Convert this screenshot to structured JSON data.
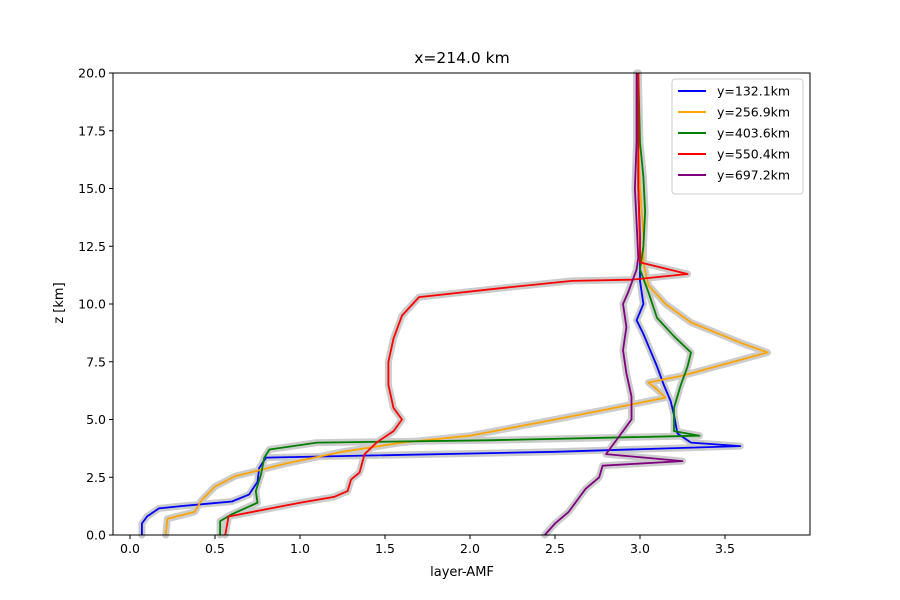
{
  "chart_data": {
    "type": "line",
    "title": "x=214.0 km",
    "xlabel": "layer-AMF",
    "ylabel": "z [km]",
    "xlim": [
      -0.1,
      4.0
    ],
    "ylim": [
      0,
      20
    ],
    "x_ticks": [
      0.0,
      0.5,
      1.0,
      1.5,
      2.0,
      2.5,
      3.0,
      3.5
    ],
    "x_tick_labels": [
      "0.0",
      "0.5",
      "1.0",
      "1.5",
      "2.0",
      "2.5",
      "3.0",
      "3.5"
    ],
    "y_ticks": [
      0,
      2.5,
      5,
      7.5,
      10,
      12.5,
      15,
      17.5,
      20
    ],
    "y_tick_labels": [
      "0.0",
      "2.5",
      "5.0",
      "7.5",
      "10.0",
      "12.5",
      "15.0",
      "17.5",
      "20.0"
    ],
    "grid": false,
    "legend_position": "top-right",
    "uncertainty_band_color": "#cccccc",
    "series": [
      {
        "name": "y=132.1km",
        "color": "#0000ff",
        "points": [
          [
            0.07,
            0
          ],
          [
            0.07,
            0.5
          ],
          [
            0.1,
            0.8
          ],
          [
            0.17,
            1.15
          ],
          [
            0.3,
            1.25
          ],
          [
            0.45,
            1.35
          ],
          [
            0.6,
            1.45
          ],
          [
            0.7,
            1.75
          ],
          [
            0.75,
            2.3
          ],
          [
            0.76,
            2.9
          ],
          [
            0.8,
            3.35
          ],
          [
            2.5,
            3.6
          ],
          [
            3.59,
            3.85
          ],
          [
            3.3,
            4.0
          ],
          [
            3.22,
            4.4
          ],
          [
            3.2,
            5.2
          ],
          [
            3.18,
            5.8
          ],
          [
            3.14,
            6.5
          ],
          [
            3.1,
            7.3
          ],
          [
            3.06,
            8.0
          ],
          [
            3.02,
            8.7
          ],
          [
            2.98,
            9.3
          ],
          [
            3.02,
            10.0
          ],
          [
            3.0,
            11.0
          ],
          [
            3.0,
            12.0
          ],
          [
            3.0,
            13.0
          ],
          [
            2.99,
            15.0
          ],
          [
            2.99,
            17.0
          ],
          [
            2.99,
            20.0
          ]
        ]
      },
      {
        "name": "y=256.9km",
        "color": "#ffa500",
        "points": [
          [
            0.21,
            0
          ],
          [
            0.22,
            0.7
          ],
          [
            0.38,
            1.0
          ],
          [
            0.42,
            1.5
          ],
          [
            0.5,
            2.1
          ],
          [
            0.62,
            2.55
          ],
          [
            0.76,
            2.8
          ],
          [
            0.92,
            3.1
          ],
          [
            1.25,
            3.6
          ],
          [
            1.6,
            4.0
          ],
          [
            2.0,
            4.3
          ],
          [
            2.5,
            5.0
          ],
          [
            2.85,
            5.5
          ],
          [
            3.15,
            5.95
          ],
          [
            3.1,
            6.3
          ],
          [
            3.05,
            6.6
          ],
          [
            3.25,
            6.9
          ],
          [
            3.45,
            7.3
          ],
          [
            3.75,
            7.9
          ],
          [
            3.6,
            8.3
          ],
          [
            3.5,
            8.6
          ],
          [
            3.3,
            9.2
          ],
          [
            3.15,
            10.0
          ],
          [
            3.05,
            10.8
          ],
          [
            3.02,
            11.8
          ],
          [
            3.02,
            13.0
          ],
          [
            3.0,
            15.0
          ],
          [
            2.99,
            17.0
          ],
          [
            2.99,
            20.0
          ]
        ]
      },
      {
        "name": "y=403.6km",
        "color": "#008000",
        "points": [
          [
            0.53,
            0
          ],
          [
            0.53,
            0.6
          ],
          [
            0.6,
            0.9
          ],
          [
            0.75,
            1.4
          ],
          [
            0.74,
            1.9
          ],
          [
            0.77,
            2.6
          ],
          [
            0.79,
            3.35
          ],
          [
            0.82,
            3.7
          ],
          [
            1.1,
            4.0
          ],
          [
            2.1,
            4.1
          ],
          [
            3.35,
            4.3
          ],
          [
            3.2,
            4.5
          ],
          [
            3.2,
            5.5
          ],
          [
            3.24,
            6.5
          ],
          [
            3.28,
            7.3
          ],
          [
            3.3,
            7.9
          ],
          [
            3.2,
            8.6
          ],
          [
            3.1,
            9.4
          ],
          [
            3.05,
            10.5
          ],
          [
            3.0,
            11.5
          ],
          [
            3.02,
            12.5
          ],
          [
            3.03,
            14.0
          ],
          [
            3.02,
            15.5
          ],
          [
            3.0,
            17.0
          ],
          [
            2.99,
            20.0
          ]
        ]
      },
      {
        "name": "y=550.4km",
        "color": "#ff0000",
        "points": [
          [
            0.56,
            0
          ],
          [
            0.58,
            0.8
          ],
          [
            1.0,
            1.4
          ],
          [
            1.2,
            1.65
          ],
          [
            1.28,
            1.9
          ],
          [
            1.3,
            2.4
          ],
          [
            1.35,
            2.7
          ],
          [
            1.38,
            3.5
          ],
          [
            1.45,
            4.0
          ],
          [
            1.55,
            4.5
          ],
          [
            1.6,
            5.0
          ],
          [
            1.55,
            5.5
          ],
          [
            1.52,
            6.5
          ],
          [
            1.52,
            7.5
          ],
          [
            1.55,
            8.5
          ],
          [
            1.6,
            9.5
          ],
          [
            1.7,
            10.3
          ],
          [
            2.2,
            10.7
          ],
          [
            2.6,
            11.0
          ],
          [
            2.95,
            11.05
          ],
          [
            3.28,
            11.3
          ],
          [
            3.0,
            11.8
          ],
          [
            3.0,
            12.5
          ],
          [
            2.99,
            15.0
          ],
          [
            2.99,
            17.0
          ],
          [
            2.99,
            20.0
          ]
        ]
      },
      {
        "name": "y=697.2km",
        "color": "#800080",
        "points": [
          [
            2.44,
            0
          ],
          [
            2.5,
            0.5
          ],
          [
            2.58,
            1.0
          ],
          [
            2.63,
            1.5
          ],
          [
            2.68,
            2.0
          ],
          [
            2.76,
            2.5
          ],
          [
            2.78,
            3.0
          ],
          [
            3.25,
            3.2
          ],
          [
            2.8,
            3.5
          ],
          [
            2.85,
            4.0
          ],
          [
            2.9,
            4.5
          ],
          [
            2.95,
            5.0
          ],
          [
            2.95,
            6.0
          ],
          [
            2.92,
            7.0
          ],
          [
            2.9,
            8.0
          ],
          [
            2.92,
            9.0
          ],
          [
            2.9,
            10.0
          ],
          [
            2.93,
            10.5
          ],
          [
            2.98,
            11.5
          ],
          [
            2.99,
            12.0
          ],
          [
            2.98,
            13.5
          ],
          [
            2.97,
            15.0
          ],
          [
            2.98,
            17.0
          ],
          [
            2.98,
            20.0
          ]
        ]
      }
    ]
  }
}
